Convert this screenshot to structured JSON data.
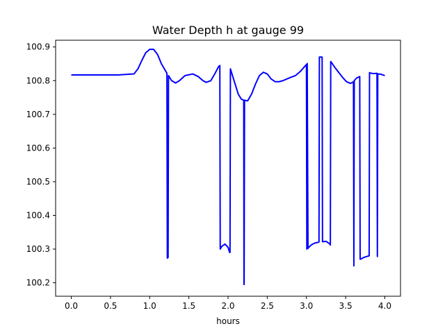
{
  "chart_data": {
    "type": "line",
    "title": "Water Depth h at gauge 99",
    "xlabel": "hours",
    "ylabel": "",
    "xlim": [
      -0.2,
      4.2
    ],
    "ylim": [
      100.16,
      100.92
    ],
    "xticks": [
      0.0,
      0.5,
      1.0,
      1.5,
      2.0,
      2.5,
      3.0,
      3.5,
      4.0
    ],
    "xtick_labels": [
      "0.0",
      "0.5",
      "1.0",
      "1.5",
      "2.0",
      "2.5",
      "3.0",
      "3.5",
      "4.0"
    ],
    "yticks": [
      100.2,
      100.3,
      100.4,
      100.5,
      100.6,
      100.7,
      100.8,
      100.9
    ],
    "ytick_labels": [
      "100.2",
      "100.3",
      "100.4",
      "100.5",
      "100.6",
      "100.7",
      "100.8",
      "100.9"
    ],
    "grid": false,
    "series": [
      {
        "color": "#0000ff",
        "x": [
          0.0,
          0.3,
          0.6,
          0.8,
          0.85,
          0.9,
          0.95,
          1.0,
          1.05,
          1.1,
          1.15,
          1.2,
          1.22,
          1.225,
          1.235,
          1.24,
          1.28,
          1.33,
          1.38,
          1.45,
          1.55,
          1.62,
          1.68,
          1.72,
          1.78,
          1.83,
          1.88,
          1.895,
          1.9,
          1.92,
          1.96,
          2.0,
          2.02,
          2.025,
          2.03,
          2.05,
          2.09,
          2.13,
          2.17,
          2.2,
          2.203,
          2.205,
          2.21,
          2.25,
          2.3,
          2.35,
          2.4,
          2.45,
          2.5,
          2.55,
          2.6,
          2.65,
          2.7,
          2.75,
          2.8,
          2.86,
          2.92,
          2.97,
          3.0,
          3.005,
          3.01,
          3.02,
          3.03,
          3.05,
          3.08,
          3.11,
          3.15,
          3.16,
          3.165,
          3.17,
          3.2,
          3.205,
          3.21,
          3.25,
          3.3,
          3.305,
          3.31,
          3.36,
          3.41,
          3.46,
          3.51,
          3.56,
          3.59,
          3.6,
          3.605,
          3.61,
          3.64,
          3.68,
          3.685,
          3.69,
          3.73,
          3.77,
          3.8,
          3.805,
          3.81,
          3.85,
          3.9,
          3.905,
          3.91,
          3.95,
          4.0
        ],
        "y": [
          100.817,
          100.817,
          100.817,
          100.82,
          100.835,
          100.86,
          100.883,
          100.893,
          100.893,
          100.878,
          100.85,
          100.83,
          100.822,
          100.273,
          100.275,
          100.815,
          100.8,
          100.793,
          100.8,
          100.815,
          100.82,
          100.812,
          100.8,
          100.795,
          100.8,
          100.82,
          100.842,
          100.845,
          100.3,
          100.308,
          100.315,
          100.305,
          100.29,
          100.29,
          100.835,
          100.82,
          100.79,
          100.76,
          100.745,
          100.742,
          100.195,
          100.195,
          100.742,
          100.74,
          100.76,
          100.79,
          100.815,
          100.825,
          100.82,
          100.805,
          100.797,
          100.797,
          100.8,
          100.805,
          100.81,
          100.815,
          100.827,
          100.84,
          100.848,
          100.3,
          100.851,
          100.302,
          100.305,
          100.31,
          100.315,
          100.318,
          100.32,
          100.321,
          100.87,
          100.87,
          100.87,
          100.322,
          100.322,
          100.323,
          100.315,
          100.312,
          100.857,
          100.84,
          100.825,
          100.81,
          100.797,
          100.792,
          100.795,
          100.797,
          100.25,
          100.8,
          100.808,
          100.812,
          100.27,
          100.27,
          100.275,
          100.278,
          100.28,
          100.824,
          100.823,
          100.821,
          100.822,
          100.278,
          100.82,
          100.819,
          100.815
        ]
      }
    ]
  }
}
